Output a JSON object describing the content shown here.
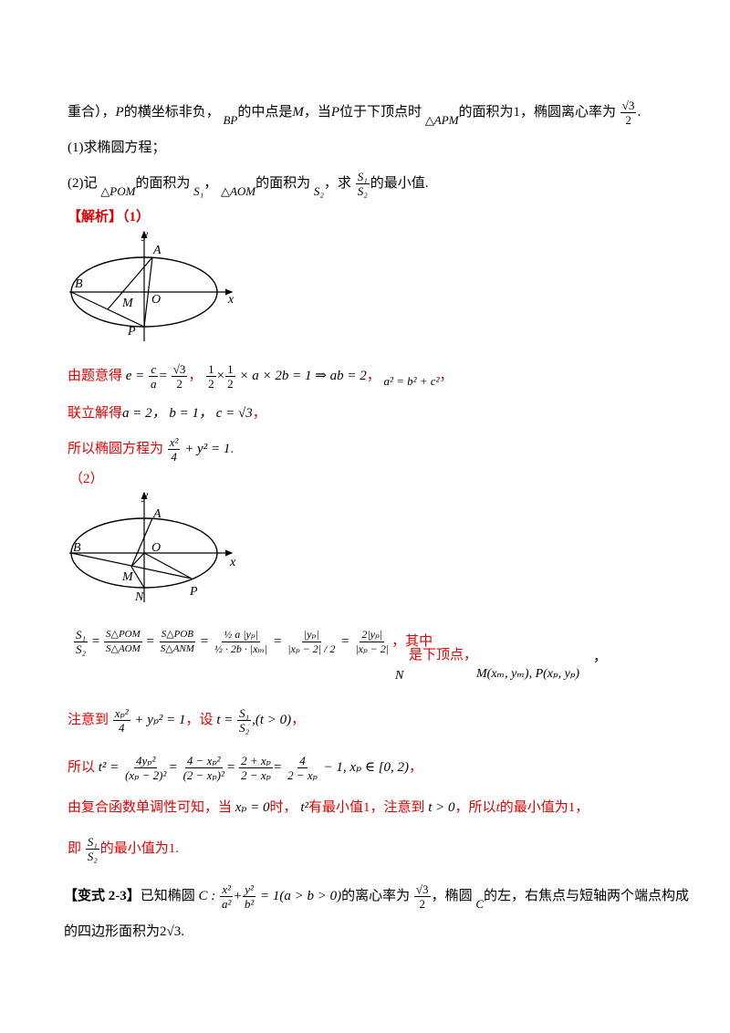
{
  "line1": {
    "a": "重合），",
    "P": "P",
    "b": "的横坐标非负，",
    "BP": "BP",
    "c": "的中点是",
    "M": "M",
    "d": "，当",
    "P2": "P",
    "e": "位于下顶点时",
    "APM": "△APM",
    "f": "的面积为1，椭圆离心率为",
    "frac_num": "√3",
    "frac_den": "2",
    "end": "."
  },
  "q1": "(1)求椭圆方程；",
  "q2": {
    "a": "(2)记",
    "POM": "△POM",
    "b": "的面积为",
    "S1": "S₁",
    "c": "，",
    "AOM": "△AOM",
    "d": "的面积为",
    "S2": "S₂",
    "e": "，求",
    "fnum": "S₁",
    "fden": "S₂",
    "f": "的最小值."
  },
  "jiexi": "【解析】（1）",
  "fig1": {
    "y": "y",
    "A": "A",
    "B": "B",
    "M": "M",
    "O": "O",
    "x": "x",
    "P": "P"
  },
  "s1": {
    "a": "由题意得",
    "eq1": "e =",
    "c": "c",
    "a_": "a",
    "eq2": "=",
    "r3": "√3",
    "two": "2",
    "comma": "，",
    "half": "1",
    "eq3": "× a × 2b = 1 ⇒ ab = 2",
    "comma2": "，",
    "rel": "a² = b² + c²",
    "comma3": "，"
  },
  "s2": {
    "a": "联立解得",
    "vals": "a = 2，  b = 1，  c = √3",
    "end": "，"
  },
  "s3": {
    "a": "所以椭圆方程为",
    "num": "x²",
    "den": "4",
    "rest": "+ y² = 1",
    "end": "."
  },
  "part2": "（2）",
  "fig2": {
    "y": "y",
    "A": "A",
    "B": "B",
    "O": "O",
    "M": "M",
    "N": "N",
    "P": "P",
    "x": "x"
  },
  "big": {
    "S1": "S₁",
    "S2": "S₂",
    "SPOM": "S△POM",
    "SAOM": "S△AOM",
    "SPOB": "S△POB",
    "SANM": "S△ANM",
    "t1num": "½ a |yₚ|",
    "t1den": "½ · 2b · |xₘ|",
    "t2num": "|yₚ|",
    "t2den": "|xₚ − 2| / 2",
    "t3num": "2|yₚ|",
    "t3den": "|xₚ − 2|",
    "qizhong": "，其中",
    "shi": "是下顶点，",
    "N": "N",
    "MP": "M(xₘ, yₘ), P(xₚ, yₚ)",
    "comma": "，"
  },
  "note": {
    "a": "注意到",
    "num": "xₚ²",
    "den": "4",
    "rest": "+ yₚ² = 1",
    "b": "，设",
    "t": "t =",
    "fnum": "S₁",
    "fden": "S₂",
    "cond": ",(t > 0)",
    "end": "，"
  },
  "tsq": {
    "a": "所以",
    "t2": "t² =",
    "f1n": "4yₚ²",
    "f1d": "(xₚ − 2)²",
    "f2n": "4 − xₚ²",
    "f2d": "(2 − xₚ)²",
    "f3n": "2 + xₚ",
    "f3d": "2 − xₚ",
    "f4n": "4",
    "f4d": "2 − xₚ",
    "tail": "− 1, xₚ ∈ [0, 2)",
    "end": "，"
  },
  "mono": {
    "a": "由复合函数单调性可知，当",
    "xp0": "xₚ = 0",
    "b": "时，",
    "t2": "t²",
    "c": "有最小值1，注意到",
    "tg0": "t > 0",
    "d": "，所以",
    "t": "t",
    "e": "的最小值为1，"
  },
  "final": {
    "a": "即",
    "num": "S₁",
    "den": "S₂",
    "b": "的最小值为1."
  },
  "var": {
    "tag": "【变式 2-3】",
    "a": "已知椭圆",
    "C": "C :",
    "n1": "x²",
    "d1": "a²",
    "n2": "y²",
    "d2": "b²",
    "eq": "= 1(a > b > 0)",
    "b": "的离心率为",
    "fn": "√3",
    "fd": "2",
    "c": "，椭圆",
    "C2": "C",
    "d": "的左，右焦点与短轴两个端点构成"
  },
  "var2": {
    "a": "的四边形面积为",
    "val": "2√3",
    "end": "."
  }
}
